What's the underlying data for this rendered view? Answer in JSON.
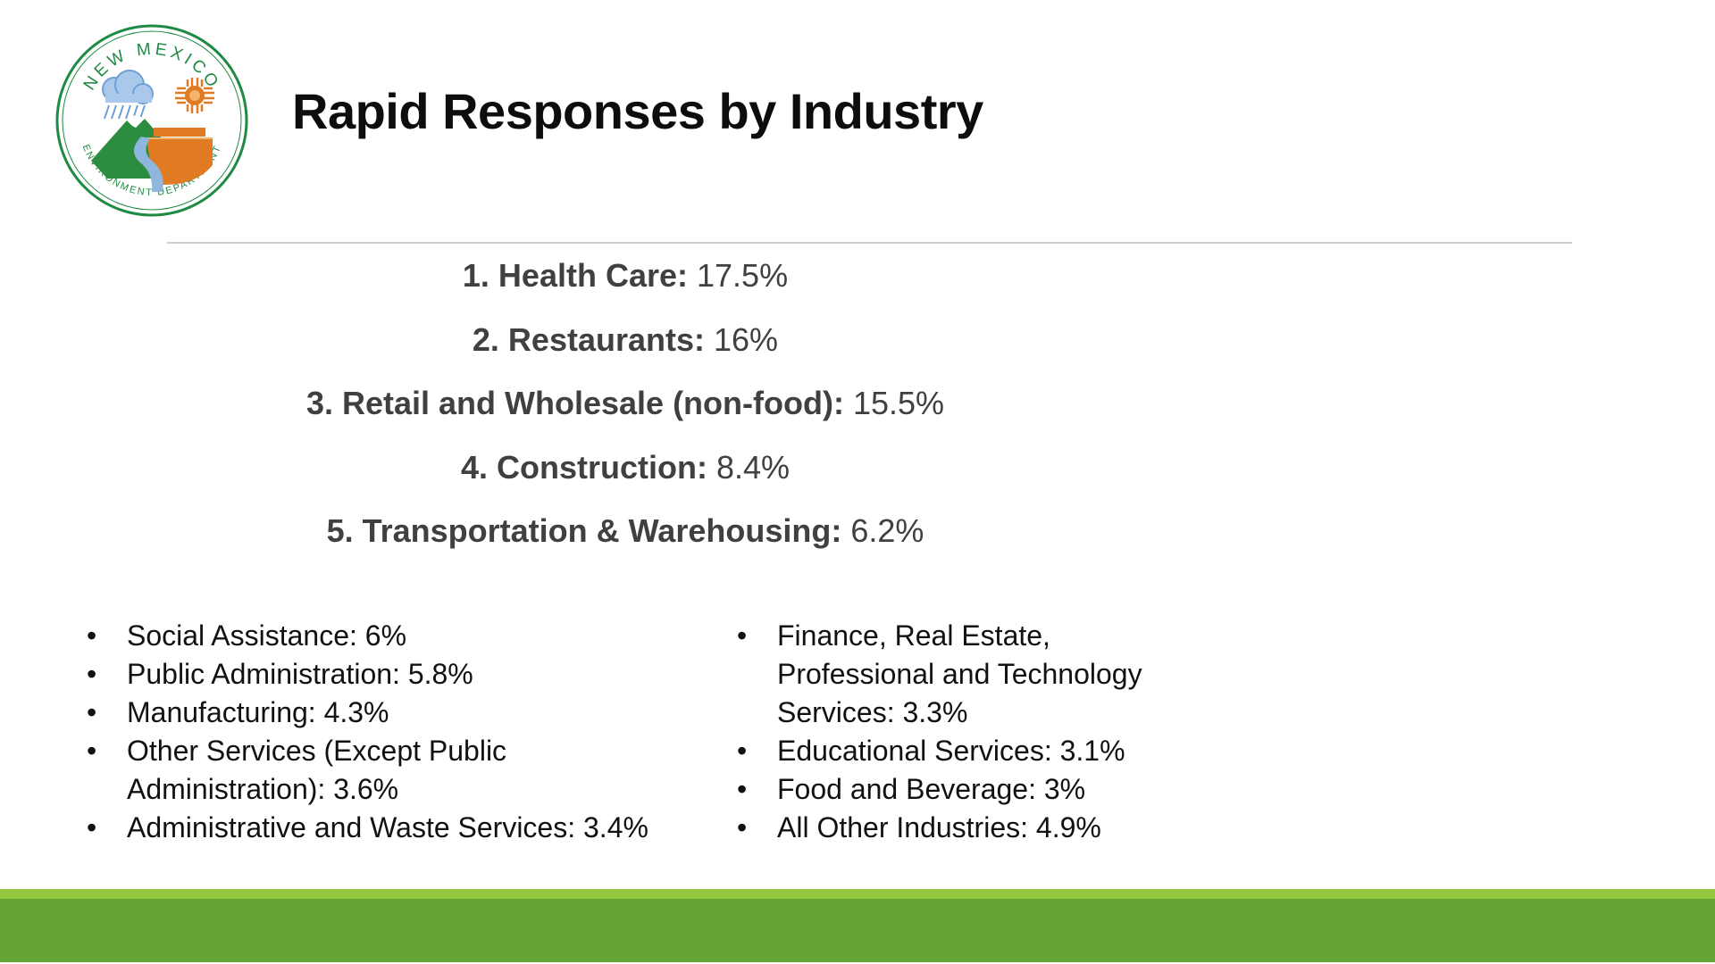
{
  "logo": {
    "text_top": "NEW MEXICO",
    "text_bottom": "ENVIRONMENT DEPARTMENT",
    "colors": {
      "ring": "#1f8a44",
      "sun": "#e07b23",
      "mountain": "#2c8c3f",
      "river": "#8fb6dd",
      "mesa": "#e07b23",
      "cloud": "#6fa0d6"
    }
  },
  "title": "Rapid Responses by Industry",
  "top_industries": [
    {
      "label": "1. Health Care:",
      "value": "17.5%"
    },
    {
      "label": "2. Restaurants:",
      "value": "16%"
    },
    {
      "label": "3. Retail and Wholesale (non-food):",
      "value": "15.5%"
    },
    {
      "label": "4. Construction:",
      "value": "8.4%"
    },
    {
      "label": "5. Transportation & Warehousing:",
      "value": "6.2%"
    }
  ],
  "bullet_glyph": "•",
  "left_bullets": [
    {
      "line1": "Social Assistance: 6%"
    },
    {
      "line1": "Public Administration: 5.8%"
    },
    {
      "line1": "Manufacturing: 4.3%"
    },
    {
      "line1": "Other Services (Except Public",
      "line2": "Administration): 3.6%"
    },
    {
      "line1": "Administrative and Waste Services: 3.4%"
    }
  ],
  "right_bullets": [
    {
      "line1": "Finance, Real Estate,",
      "line2": "Professional and Technology",
      "line3": "Services: 3.3%"
    },
    {
      "line1": "Educational Services: 3.1%"
    },
    {
      "line1": "Food and Beverage: 3%"
    },
    {
      "line1": "All Other Industries: 4.9%"
    }
  ],
  "footer_colors": {
    "stripe": "#93c83e",
    "bar": "#64a536"
  }
}
